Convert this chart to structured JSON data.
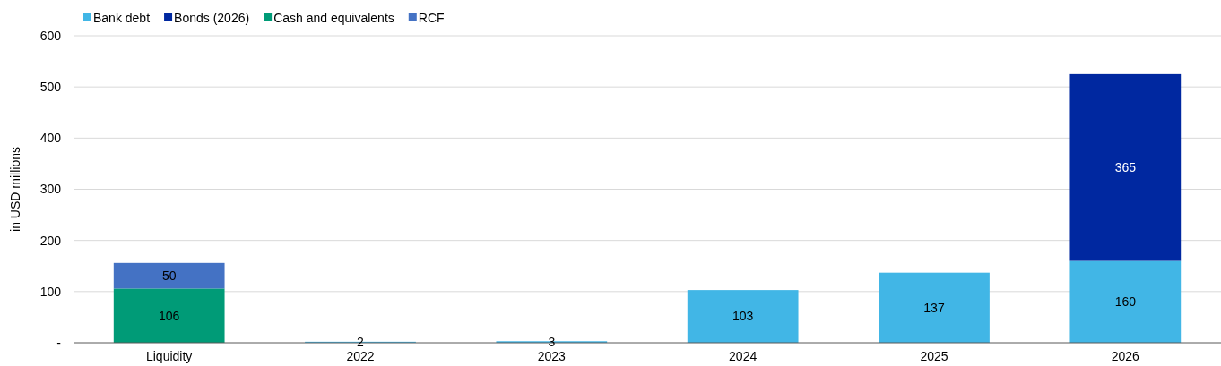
{
  "chart_data": {
    "type": "bar",
    "stacked": true,
    "ylabel": "in USD millions",
    "categories": [
      "Liquidity",
      "2022",
      "2023",
      "2024",
      "2025",
      "2026"
    ],
    "series": [
      {
        "name": "Bank debt",
        "color": "#41b6e6",
        "values": [
          null,
          2,
          3,
          103,
          137,
          160
        ]
      },
      {
        "name": "Bonds (2026)",
        "color": "#0028a0",
        "values": [
          null,
          null,
          null,
          null,
          null,
          365
        ]
      },
      {
        "name": "Cash and equivalents",
        "color": "#009b77",
        "values": [
          106,
          null,
          null,
          null,
          null,
          null
        ]
      },
      {
        "name": "RCF",
        "color": "#4472c4",
        "values": [
          50,
          null,
          null,
          null,
          null,
          null
        ]
      }
    ],
    "ylim": [
      0,
      600
    ],
    "yticks": [
      {
        "value": 0,
        "label": "-"
      },
      100,
      200,
      300,
      400,
      500,
      600
    ],
    "grid": "y",
    "legend": "top left",
    "data_labels": true
  }
}
